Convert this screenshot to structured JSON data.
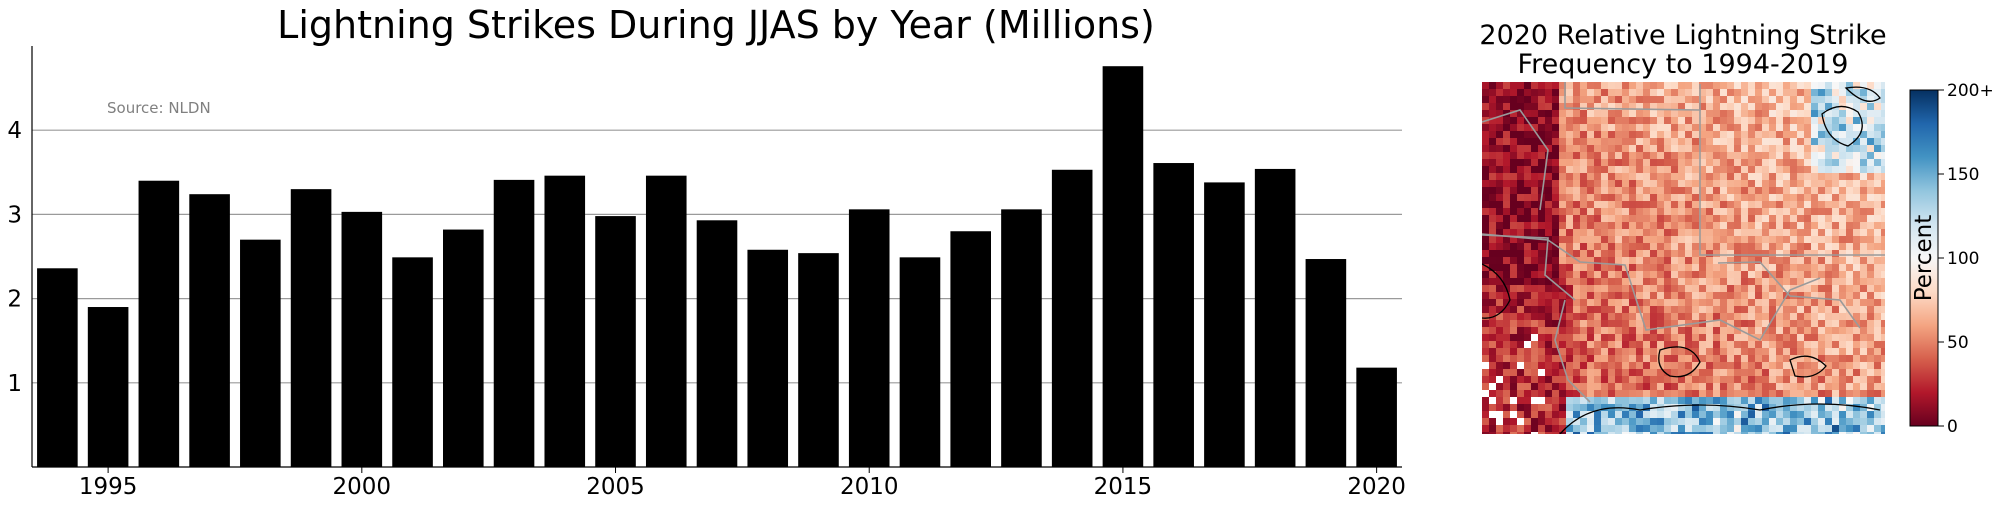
{
  "chart_data": [
    {
      "type": "bar",
      "title": "Lightning Strikes During JJAS by Year (Millions)",
      "annotation": "Source: NLDN",
      "xlabel": "",
      "ylabel": "",
      "categories": [
        1994,
        1995,
        1996,
        1997,
        1998,
        1999,
        2000,
        2001,
        2002,
        2003,
        2004,
        2005,
        2006,
        2007,
        2008,
        2009,
        2010,
        2011,
        2012,
        2013,
        2014,
        2015,
        2016,
        2017,
        2018,
        2019,
        2020
      ],
      "values": [
        2.36,
        1.9,
        3.4,
        3.24,
        2.7,
        3.3,
        3.03,
        2.49,
        2.82,
        3.41,
        3.46,
        2.98,
        3.46,
        2.93,
        2.58,
        2.54,
        3.06,
        2.49,
        2.8,
        3.06,
        3.53,
        4.76,
        3.61,
        3.38,
        3.54,
        2.47,
        1.18
      ],
      "xticks": [
        "1995",
        "2000",
        "2005",
        "2010",
        "2015",
        "2020"
      ],
      "yticks": [
        "1",
        "2",
        "3",
        "4"
      ],
      "ylim": [
        0,
        5
      ],
      "grid": "horizontal",
      "bar_color": "#000000"
    },
    {
      "type": "heatmap",
      "title_line1": "2020 Relative Lightning Strike",
      "title_line2": "Frequency to 1994-2019",
      "colorbar_label": "Percent",
      "colorbar_ticks": [
        "0",
        "50",
        "100",
        "150",
        "200+"
      ],
      "colorbar_range": [
        0,
        200
      ],
      "colormap": [
        "#67001f",
        "#b2182b",
        "#d6604d",
        "#f4a582",
        "#fddbc7",
        "#f7f7f7",
        "#d1e5f0",
        "#92c5de",
        "#4393c3",
        "#2166ac",
        "#053061"
      ]
    }
  ]
}
